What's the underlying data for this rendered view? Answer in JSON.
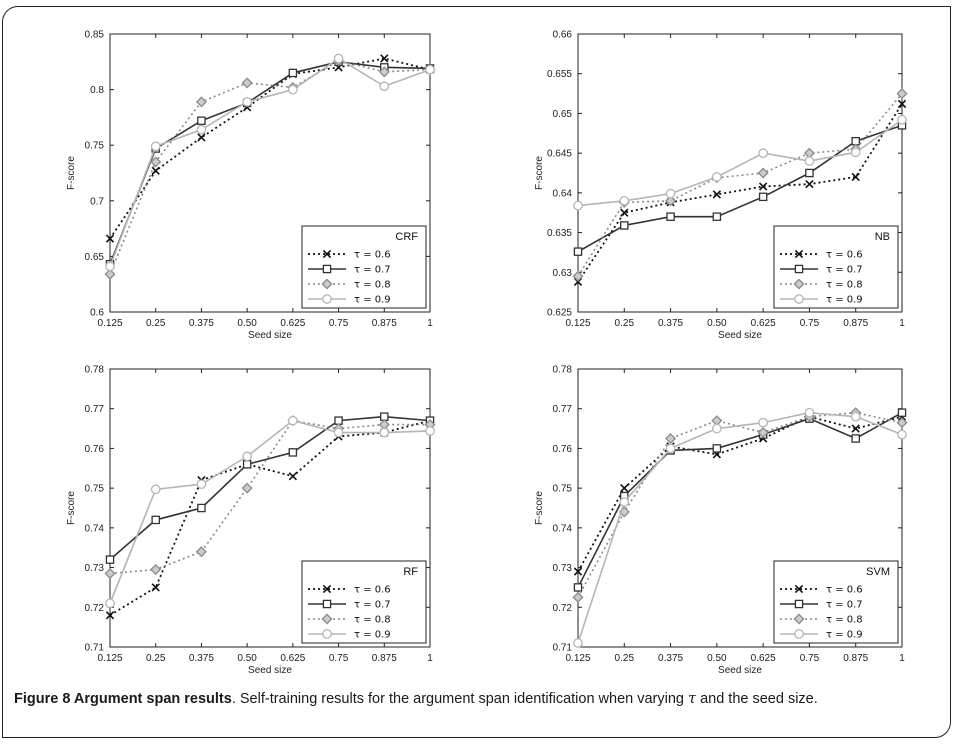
{
  "caption": {
    "figure_label": "Figure 8",
    "title": "Argument span results",
    "text_before_tau": ". Self-training results for the argument span identification when varying ",
    "tau": "τ",
    "text_after_tau": " and the seed size."
  },
  "colors": {
    "t06": "#111111",
    "t07": "#333333",
    "t08": "#8a8a8a",
    "t09": "#b5b5b5"
  },
  "chart_data": [
    {
      "type": "line",
      "panel_label": "CRF",
      "xlabel": "Seed size",
      "ylabel": "F-score",
      "categories": [
        "0.125",
        "0.25",
        "0.375",
        "0.50",
        "0.625",
        "0.75",
        "0.875",
        "1"
      ],
      "ylim": [
        0.6,
        0.85
      ],
      "yticks": [
        "0.85",
        "0.8",
        "0.75",
        "0.7",
        "0.65"
      ],
      "ytick_values": [
        0.85,
        0.8,
        0.75,
        0.7,
        0.65
      ],
      "legend_position": "bottom-right",
      "series": [
        {
          "name": "τ = 0.6",
          "values": [
            0.666,
            0.727,
            0.757,
            0.784,
            0.814,
            0.82,
            0.828,
            0.818
          ]
        },
        {
          "name": "τ = 0.7",
          "values": [
            0.643,
            0.747,
            0.772,
            0.788,
            0.815,
            0.825,
            0.82,
            0.819
          ]
        },
        {
          "name": "τ = 0.8",
          "values": [
            0.634,
            0.735,
            0.789,
            0.806,
            0.802,
            0.826,
            0.816,
            0.818
          ]
        },
        {
          "name": "τ = 0.9",
          "values": [
            0.641,
            0.749,
            0.764,
            0.789,
            0.8,
            0.828,
            0.803,
            0.818
          ]
        }
      ]
    },
    {
      "type": "line",
      "panel_label": "NB",
      "xlabel": "Seed size",
      "ylabel": "F-score",
      "categories": [
        "0.125",
        "0.25",
        "0.375",
        "0.50",
        "0.625",
        "0.75",
        "0.875",
        "1"
      ],
      "ylim": [
        0.625,
        0.66
      ],
      "yticks": [
        "0.66",
        "0.655",
        "0.65",
        "0.645",
        "0.64",
        "0.635",
        "0.63",
        "0.625"
      ],
      "ytick_values": [
        0.66,
        0.655,
        0.65,
        0.645,
        0.64,
        0.635,
        0.63,
        0.625
      ],
      "legend_position": "bottom-right",
      "series": [
        {
          "name": "τ = 0.6",
          "values": [
            0.6288,
            0.6375,
            0.6388,
            0.6398,
            0.6408,
            0.6411,
            0.642,
            0.6512
          ]
        },
        {
          "name": "τ = 0.7",
          "values": [
            0.6326,
            0.6359,
            0.637,
            0.637,
            0.6395,
            0.6425,
            0.6465,
            0.6485
          ]
        },
        {
          "name": "τ = 0.8",
          "values": [
            0.6295,
            0.6388,
            0.639,
            0.6419,
            0.6425,
            0.645,
            0.6455,
            0.6525
          ]
        },
        {
          "name": "τ = 0.9",
          "values": [
            0.6384,
            0.639,
            0.6399,
            0.642,
            0.645,
            0.644,
            0.6451,
            0.6492
          ]
        }
      ]
    },
    {
      "type": "line",
      "panel_label": "RF",
      "xlabel": "Seed size",
      "ylabel": "F-score",
      "categories": [
        "0.125",
        "0.25",
        "0.375",
        "0.50",
        "0.625",
        "0.75",
        "0.875",
        "1"
      ],
      "ylim": [
        0.71,
        0.78
      ],
      "yticks": [
        "0.78",
        "0.77",
        "0.76",
        "0.75",
        "0.74",
        "0.73",
        "0.72",
        "0.71"
      ],
      "ytick_values": [
        0.78,
        0.77,
        0.76,
        0.75,
        0.74,
        0.73,
        0.72,
        0.71
      ],
      "legend_position": "bottom-right",
      "series": [
        {
          "name": "τ = 0.6",
          "values": [
            0.718,
            0.725,
            0.752,
            0.756,
            0.753,
            0.763,
            0.764,
            0.767
          ]
        },
        {
          "name": "τ = 0.7",
          "values": [
            0.732,
            0.742,
            0.745,
            0.756,
            0.759,
            0.767,
            0.768,
            0.767
          ]
        },
        {
          "name": "τ = 0.8",
          "values": [
            0.7285,
            0.7295,
            0.734,
            0.75,
            0.767,
            0.765,
            0.766,
            0.766
          ]
        },
        {
          "name": "τ = 0.9",
          "values": [
            0.721,
            0.7497,
            0.751,
            0.758,
            0.767,
            0.764,
            0.764,
            0.7644
          ]
        }
      ]
    },
    {
      "type": "line",
      "panel_label": "SVM",
      "xlabel": "Seed size",
      "ylabel": "F-score",
      "categories": [
        "0.125",
        "0.25",
        "0.375",
        "0.50",
        "0.625",
        "0.75",
        "0.875",
        "1"
      ],
      "ylim": [
        0.71,
        0.78
      ],
      "yticks": [
        "0.78",
        "0.77",
        "0.76",
        "0.75",
        "0.74",
        "0.73",
        "0.72",
        "0.71"
      ],
      "ytick_values": [
        0.78,
        0.77,
        0.76,
        0.75,
        0.74,
        0.73,
        0.72,
        0.71
      ],
      "legend_position": "bottom-right",
      "series": [
        {
          "name": "τ = 0.6",
          "values": [
            0.729,
            0.75,
            0.7605,
            0.7585,
            0.7625,
            0.768,
            0.765,
            0.768
          ]
        },
        {
          "name": "τ = 0.7",
          "values": [
            0.725,
            0.748,
            0.7595,
            0.76,
            0.7635,
            0.7675,
            0.7625,
            0.769
          ]
        },
        {
          "name": "τ = 0.8",
          "values": [
            0.7225,
            0.744,
            0.7625,
            0.767,
            0.764,
            0.768,
            0.769,
            0.7665
          ]
        },
        {
          "name": "τ = 0.9",
          "values": [
            0.711,
            0.7465,
            0.76,
            0.765,
            0.7665,
            0.769,
            0.768,
            0.7635
          ]
        }
      ]
    }
  ]
}
